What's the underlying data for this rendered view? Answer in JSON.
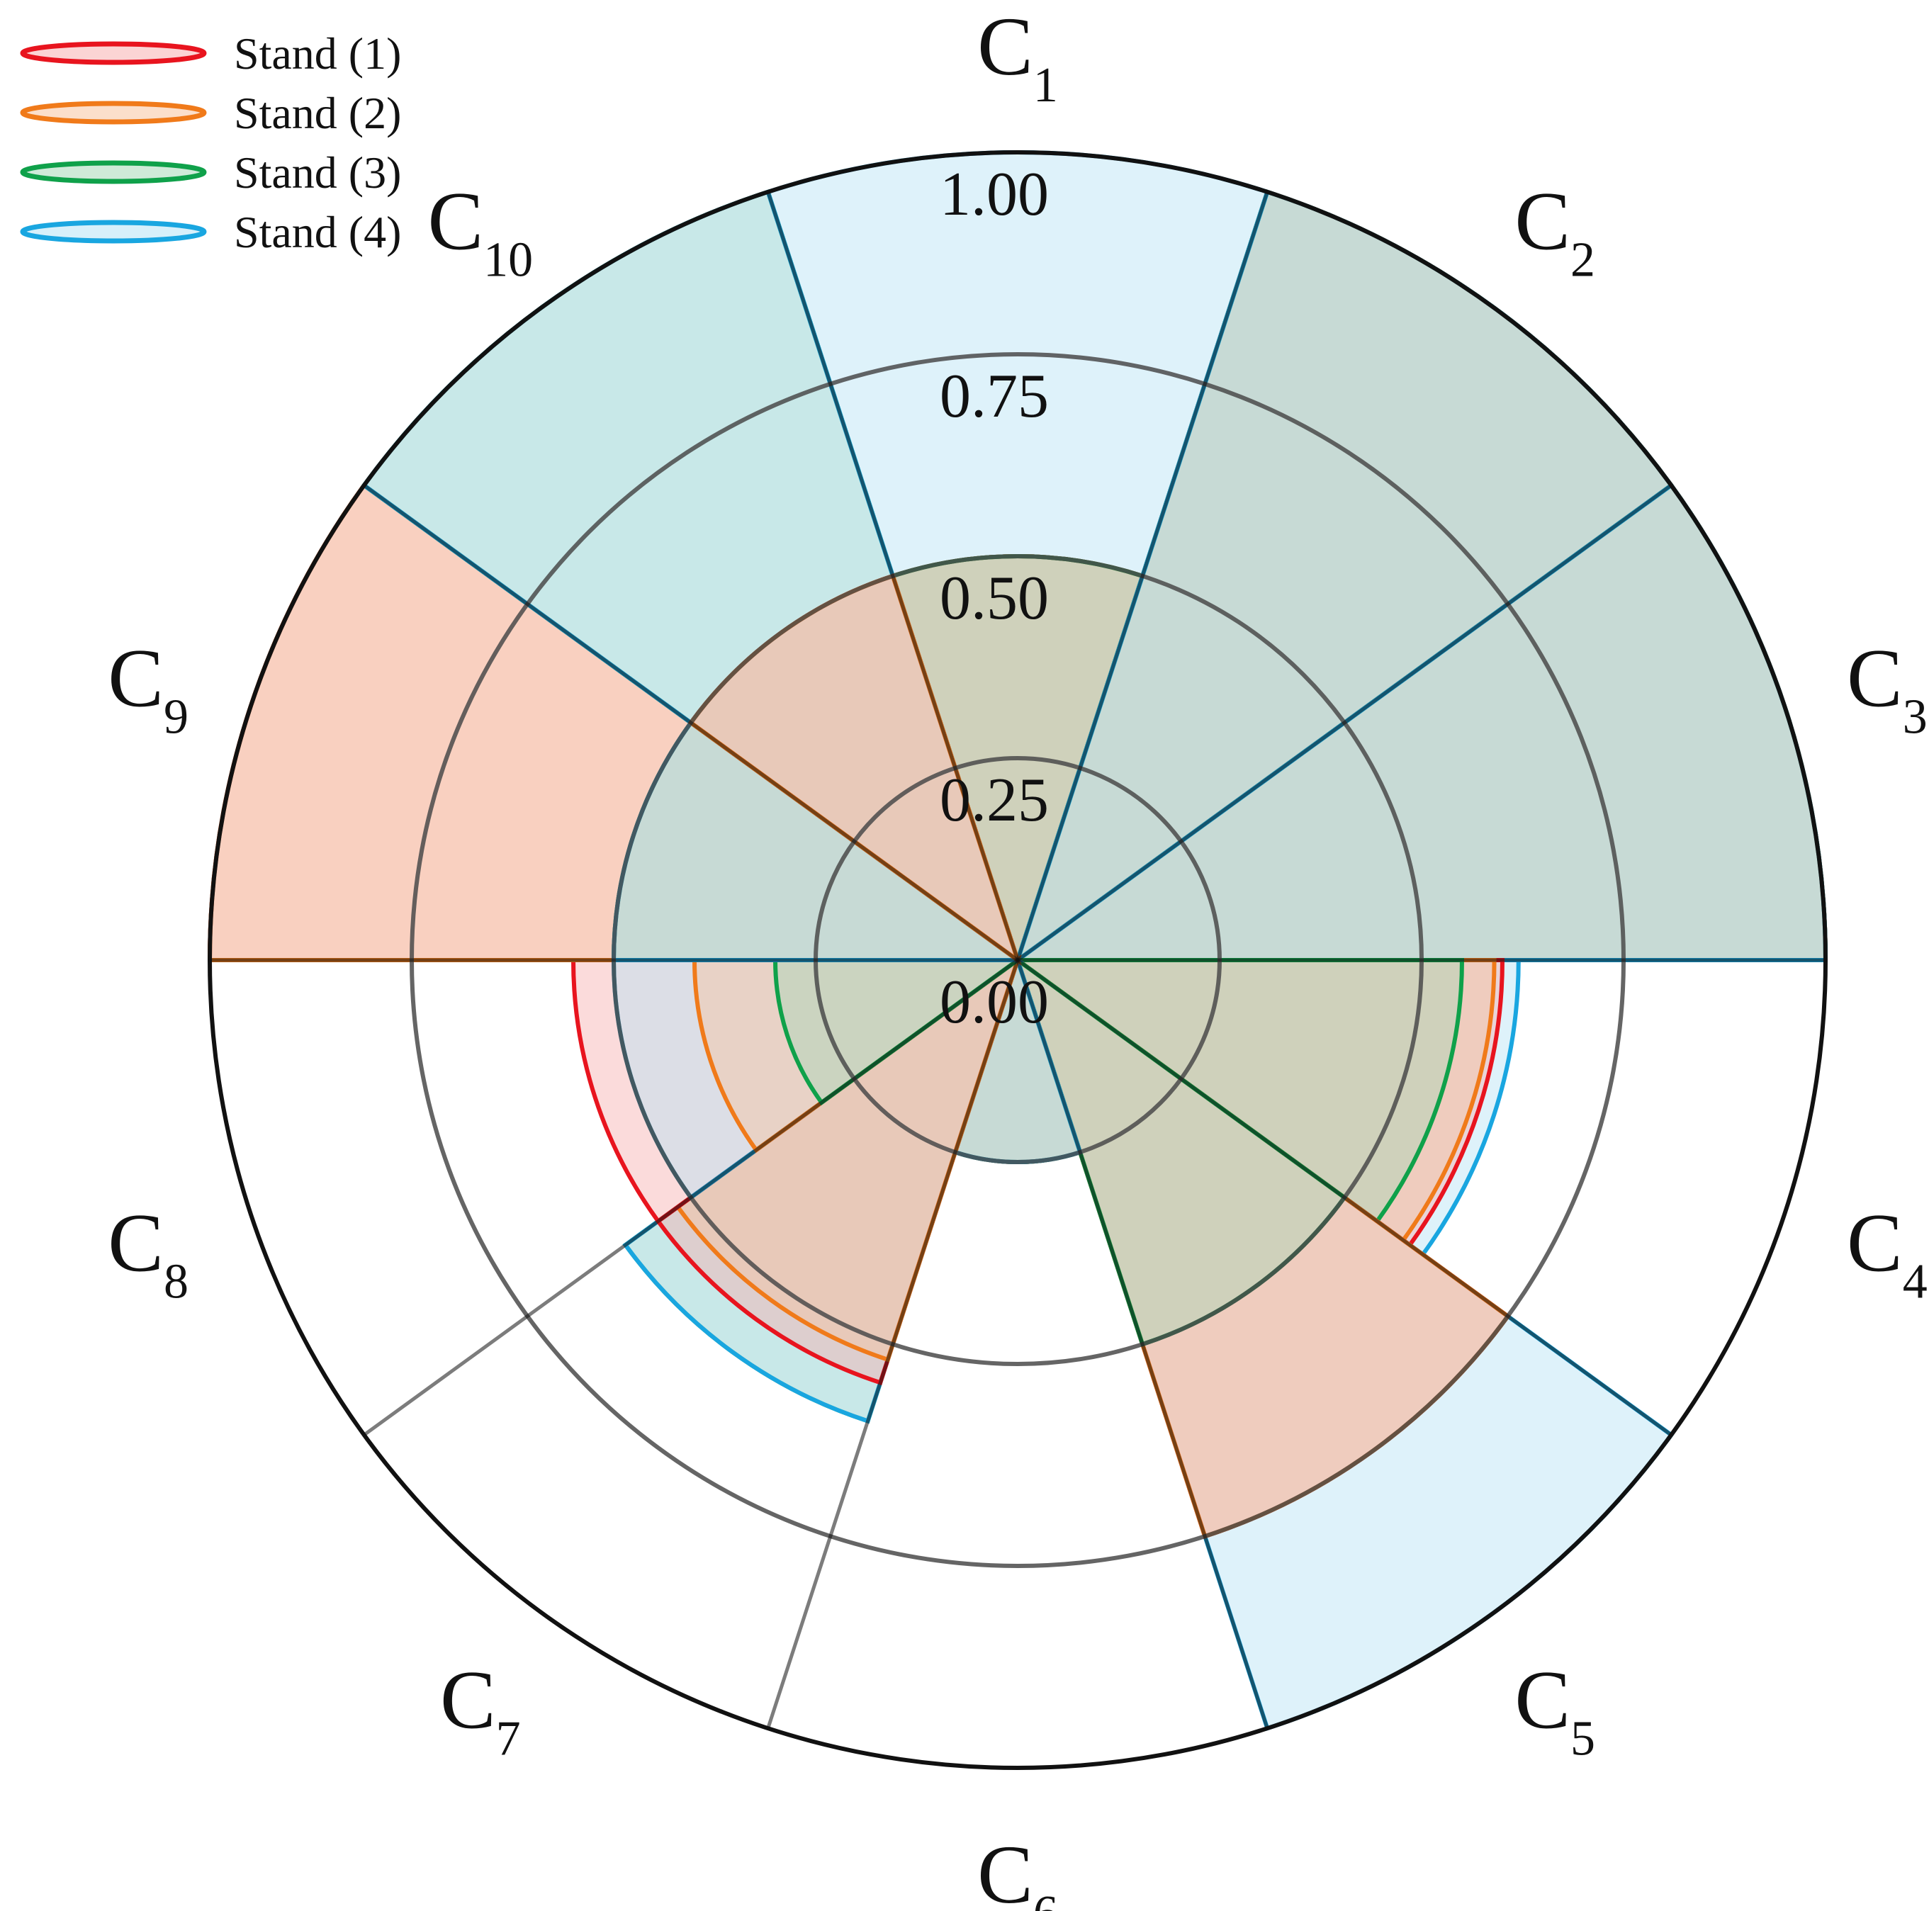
{
  "chart_data": {
    "type": "nightingale-rose",
    "radial_ticks": [
      "0.00",
      "0.25",
      "0.50",
      "0.75",
      "1.00"
    ],
    "radial_range": [
      0,
      1
    ],
    "categories": [
      {
        "letter": "C",
        "sub": "1"
      },
      {
        "letter": "C",
        "sub": "2"
      },
      {
        "letter": "C",
        "sub": "3"
      },
      {
        "letter": "C",
        "sub": "4"
      },
      {
        "letter": "C",
        "sub": "5"
      },
      {
        "letter": "C",
        "sub": "6"
      },
      {
        "letter": "C",
        "sub": "7"
      },
      {
        "letter": "C",
        "sub": "8"
      },
      {
        "letter": "C",
        "sub": "9"
      },
      {
        "letter": "C",
        "sub": "10"
      }
    ],
    "series": [
      {
        "name": "Stand (1)",
        "color": "#e8141e",
        "fill": "#f7b0b0",
        "values": [
          0.5,
          1.0,
          1.0,
          0.6,
          0.75,
          0.25,
          0.55,
          0.55,
          1.0,
          0.5
        ]
      },
      {
        "name": "Stand (2)",
        "color": "#f07a1a",
        "fill": "#f7c4a0",
        "values": [
          0.5,
          1.0,
          1.0,
          0.59,
          0.75,
          0.25,
          0.52,
          0.4,
          1.0,
          0.5
        ]
      },
      {
        "name": "Stand (3)",
        "color": "#0fa14a",
        "fill": "#a8d8b8",
        "values": [
          0.5,
          1.0,
          1.0,
          0.55,
          0.5,
          0.25,
          0.6,
          0.3,
          0.5,
          1.0
        ]
      },
      {
        "name": "Stand (4)",
        "color": "#19a6e0",
        "fill": "#b6e3f5",
        "values": [
          1.0,
          1.0,
          1.0,
          0.62,
          1.0,
          0.25,
          0.6,
          0.5,
          0.5,
          1.0
        ]
      }
    ],
    "legend_position": "top-left",
    "grid": true
  }
}
